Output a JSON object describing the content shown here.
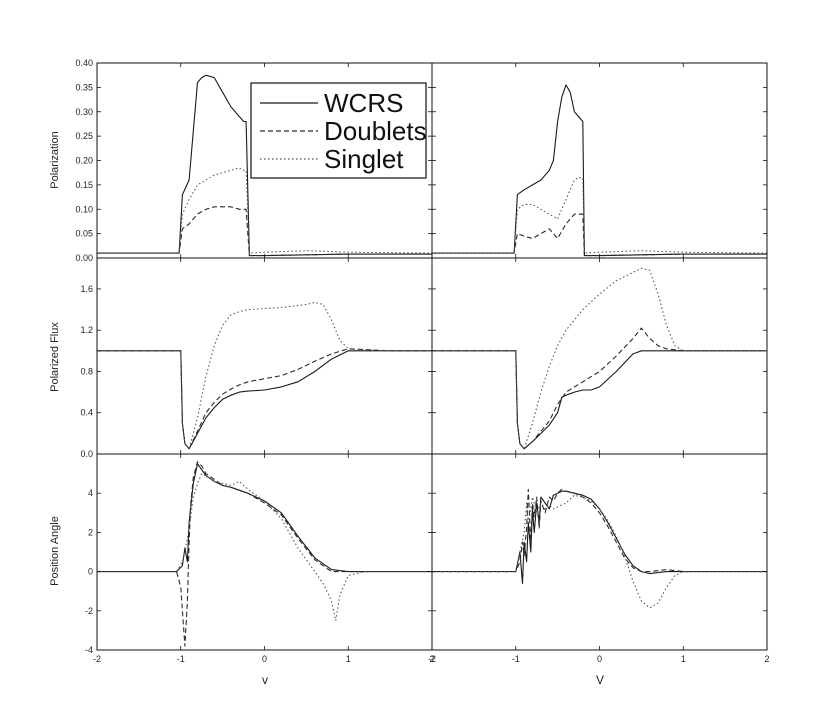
{
  "chart_data": {
    "type": "line",
    "layout": "3x2 panel grid with shared axes",
    "series_styles": [
      {
        "name": "WCRS",
        "dash": "solid",
        "color": "#1a1a1a"
      },
      {
        "name": "Doublets",
        "dash": "dashed",
        "color": "#2a2a2a"
      },
      {
        "name": "Singlet",
        "dash": "dotted",
        "color": "#555555"
      }
    ],
    "legend": {
      "placement": "top-left panel, upper right",
      "entries": [
        "WCRS",
        "Doublets",
        "Singlet"
      ]
    },
    "x_axis": {
      "xlim": [
        -2,
        2
      ],
      "ticks": [
        -2,
        -1,
        0,
        1,
        2
      ],
      "xlabel_left": "v",
      "xlabel_right": "V"
    },
    "rows": [
      {
        "ylabel": "Polarization",
        "ylim": [
          0.0,
          0.4
        ],
        "ticks": [
          "0.00",
          "0.05",
          "0.10",
          "0.15",
          "0.20",
          "0.25",
          "0.30",
          "0.35",
          "0.40"
        ],
        "tick_values": [
          0.0,
          0.05,
          0.1,
          0.15,
          0.2,
          0.25,
          0.3,
          0.35,
          0.4
        ]
      },
      {
        "ylabel": "Polarized Flux",
        "ylim": [
          0.0,
          1.9
        ],
        "ticks": [
          "0.0",
          "0.4",
          "0.8",
          "1.2",
          "1.6"
        ],
        "tick_values": [
          0.0,
          0.4,
          0.8,
          1.2,
          1.6
        ]
      },
      {
        "ylabel": "Position Angle",
        "ylim": [
          -4,
          6
        ],
        "ticks": [
          "-4",
          "-2",
          "0",
          "2",
          "4"
        ],
        "tick_values": [
          -4,
          -2,
          0,
          2,
          4
        ]
      }
    ],
    "panels": [
      {
        "row": 0,
        "col": 0,
        "series": [
          {
            "name": "WCRS",
            "x": [
              -2,
              -1.02,
              -0.98,
              -0.9,
              -0.85,
              -0.8,
              -0.75,
              -0.7,
              -0.6,
              -0.5,
              -0.4,
              -0.3,
              -0.25,
              -0.22,
              -0.18,
              0,
              1,
              2
            ],
            "y": [
              0.01,
              0.01,
              0.13,
              0.16,
              0.26,
              0.36,
              0.37,
              0.375,
              0.37,
              0.34,
              0.31,
              0.29,
              0.28,
              0.28,
              0.005,
              0.005,
              0.008,
              0.008
            ]
          },
          {
            "name": "Doublets",
            "x": [
              -2,
              -1.02,
              -0.98,
              -0.9,
              -0.8,
              -0.7,
              -0.6,
              -0.5,
              -0.4,
              -0.3,
              -0.25,
              -0.22,
              -0.18,
              0,
              1,
              2
            ],
            "y": [
              0.01,
              0.01,
              0.06,
              0.07,
              0.09,
              0.1,
              0.105,
              0.105,
              0.105,
              0.1,
              0.1,
              0.1,
              0.005,
              0.005,
              0.008,
              0.008
            ]
          },
          {
            "name": "Singlet",
            "x": [
              -2,
              -1.02,
              -0.98,
              -0.9,
              -0.8,
              -0.7,
              -0.6,
              -0.5,
              -0.4,
              -0.3,
              -0.25,
              -0.22,
              -0.18,
              0,
              0.5,
              1,
              2
            ],
            "y": [
              0.01,
              0.01,
              0.09,
              0.12,
              0.15,
              0.16,
              0.17,
              0.175,
              0.18,
              0.185,
              0.18,
              0.18,
              0.01,
              0.012,
              0.015,
              0.012,
              0.01
            ]
          }
        ]
      },
      {
        "row": 0,
        "col": 1,
        "series": [
          {
            "name": "WCRS",
            "x": [
              -2,
              -1.02,
              -0.98,
              -0.9,
              -0.8,
              -0.7,
              -0.6,
              -0.55,
              -0.5,
              -0.45,
              -0.4,
              -0.35,
              -0.3,
              -0.25,
              -0.2,
              -0.18,
              0,
              1,
              2
            ],
            "y": [
              0.01,
              0.01,
              0.13,
              0.14,
              0.15,
              0.16,
              0.18,
              0.2,
              0.28,
              0.33,
              0.355,
              0.34,
              0.3,
              0.29,
              0.28,
              0.005,
              0.005,
              0.008,
              0.008
            ]
          },
          {
            "name": "Doublets",
            "x": [
              -2,
              -1.02,
              -0.98,
              -0.9,
              -0.8,
              -0.7,
              -0.6,
              -0.5,
              -0.4,
              -0.3,
              -0.25,
              -0.2,
              -0.18,
              0,
              1,
              2
            ],
            "y": [
              0.01,
              0.01,
              0.05,
              0.045,
              0.04,
              0.05,
              0.06,
              0.04,
              0.07,
              0.09,
              0.09,
              0.09,
              0.005,
              0.005,
              0.008,
              0.008
            ]
          },
          {
            "name": "Singlet",
            "x": [
              -2,
              -1.02,
              -0.98,
              -0.9,
              -0.8,
              -0.7,
              -0.6,
              -0.5,
              -0.4,
              -0.3,
              -0.25,
              -0.2,
              -0.18,
              0,
              0.5,
              1,
              2
            ],
            "y": [
              0.01,
              0.01,
              0.1,
              0.11,
              0.11,
              0.1,
              0.09,
              0.08,
              0.12,
              0.16,
              0.165,
              0.165,
              0.01,
              0.012,
              0.015,
              0.012,
              0.01
            ]
          }
        ]
      },
      {
        "row": 1,
        "col": 0,
        "series": [
          {
            "name": "WCRS",
            "x": [
              -2,
              -1.0,
              -0.98,
              -0.95,
              -0.9,
              -0.8,
              -0.7,
              -0.6,
              -0.5,
              -0.4,
              -0.3,
              -0.2,
              0,
              0.2,
              0.4,
              0.6,
              0.8,
              1.0,
              1.5,
              2
            ],
            "y": [
              1.0,
              1.0,
              0.3,
              0.1,
              0.05,
              0.2,
              0.35,
              0.45,
              0.53,
              0.57,
              0.6,
              0.61,
              0.62,
              0.65,
              0.7,
              0.8,
              0.92,
              1.0,
              1.0,
              1.0
            ]
          },
          {
            "name": "Doublets",
            "x": [
              -2,
              -1.0,
              -0.98,
              -0.95,
              -0.9,
              -0.8,
              -0.7,
              -0.6,
              -0.5,
              -0.4,
              -0.3,
              -0.2,
              0,
              0.2,
              0.4,
              0.6,
              0.8,
              1.0,
              1.5,
              2
            ],
            "y": [
              1.0,
              1.0,
              0.3,
              0.1,
              0.05,
              0.22,
              0.4,
              0.5,
              0.58,
              0.63,
              0.67,
              0.7,
              0.73,
              0.76,
              0.82,
              0.9,
              0.97,
              1.02,
              1.0,
              1.0
            ]
          },
          {
            "name": "Singlet",
            "x": [
              -2,
              -1.0,
              -0.98,
              -0.95,
              -0.9,
              -0.8,
              -0.7,
              -0.6,
              -0.5,
              -0.4,
              -0.3,
              -0.2,
              0,
              0.2,
              0.4,
              0.5,
              0.6,
              0.7,
              0.8,
              0.9,
              1.0,
              1.5,
              2
            ],
            "y": [
              1.0,
              1.0,
              0.3,
              0.1,
              0.05,
              0.35,
              0.75,
              1.05,
              1.25,
              1.35,
              1.38,
              1.4,
              1.41,
              1.42,
              1.44,
              1.45,
              1.47,
              1.45,
              1.3,
              1.1,
              1.02,
              1.0,
              1.0
            ]
          }
        ]
      },
      {
        "row": 1,
        "col": 1,
        "series": [
          {
            "name": "WCRS",
            "x": [
              -2,
              -1.0,
              -0.98,
              -0.95,
              -0.9,
              -0.8,
              -0.7,
              -0.6,
              -0.5,
              -0.45,
              -0.4,
              -0.3,
              -0.2,
              -0.1,
              0,
              0.2,
              0.4,
              0.5,
              1.0,
              2
            ],
            "y": [
              1.0,
              1.0,
              0.3,
              0.1,
              0.05,
              0.12,
              0.2,
              0.28,
              0.4,
              0.55,
              0.57,
              0.6,
              0.62,
              0.62,
              0.65,
              0.8,
              0.97,
              1.0,
              1.0,
              1.0
            ]
          },
          {
            "name": "Doublets",
            "x": [
              -2,
              -1.0,
              -0.98,
              -0.95,
              -0.9,
              -0.8,
              -0.7,
              -0.6,
              -0.5,
              -0.4,
              -0.3,
              -0.2,
              0,
              0.2,
              0.4,
              0.5,
              0.6,
              0.7,
              0.8,
              1.0,
              2
            ],
            "y": [
              1.0,
              1.0,
              0.3,
              0.1,
              0.05,
              0.12,
              0.22,
              0.32,
              0.48,
              0.6,
              0.65,
              0.7,
              0.8,
              0.95,
              1.12,
              1.22,
              1.12,
              1.05,
              1.02,
              1.0,
              1.0
            ]
          },
          {
            "name": "Singlet",
            "x": [
              -2,
              -1.0,
              -0.98,
              -0.95,
              -0.9,
              -0.8,
              -0.7,
              -0.6,
              -0.5,
              -0.4,
              -0.3,
              -0.2,
              0,
              0.2,
              0.4,
              0.5,
              0.6,
              0.7,
              0.8,
              0.9,
              1.0,
              2
            ],
            "y": [
              1.0,
              1.0,
              0.3,
              0.1,
              0.05,
              0.3,
              0.6,
              0.85,
              1.05,
              1.2,
              1.3,
              1.4,
              1.55,
              1.68,
              1.76,
              1.8,
              1.78,
              1.55,
              1.25,
              1.05,
              1.0,
              1.0
            ]
          }
        ]
      },
      {
        "row": 2,
        "col": 0,
        "series": [
          {
            "name": "WCRS",
            "x": [
              -2,
              -1.05,
              -0.98,
              -0.95,
              -0.92,
              -0.9,
              -0.85,
              -0.8,
              -0.75,
              -0.7,
              -0.6,
              -0.5,
              -0.4,
              -0.2,
              0,
              0.2,
              0.4,
              0.6,
              0.8,
              1.0,
              1.5,
              2
            ],
            "y": [
              0,
              0,
              0.3,
              1.2,
              0.5,
              2.5,
              4.5,
              5.5,
              5.2,
              4.9,
              4.6,
              4.4,
              4.3,
              4.0,
              3.6,
              3.0,
              1.8,
              0.7,
              0.1,
              0,
              0,
              0
            ]
          },
          {
            "name": "Doublets",
            "x": [
              -2,
              -1.05,
              -1.0,
              -0.98,
              -0.95,
              -0.92,
              -0.9,
              -0.88,
              -0.85,
              -0.8,
              -0.75,
              -0.7,
              -0.6,
              -0.5,
              -0.4,
              -0.2,
              0,
              0.2,
              0.4,
              0.6,
              0.8,
              1.0,
              1.5,
              2
            ],
            "y": [
              0,
              0,
              -0.8,
              -2.0,
              -3.8,
              -1.5,
              1.5,
              3.5,
              4.8,
              5.6,
              5.4,
              5.0,
              4.7,
              4.4,
              4.3,
              4.0,
              3.5,
              2.9,
              1.7,
              0.6,
              0.0,
              0,
              0,
              0
            ]
          },
          {
            "name": "Singlet",
            "x": [
              -2,
              -1.05,
              -0.98,
              -0.95,
              -0.9,
              -0.85,
              -0.8,
              -0.75,
              -0.7,
              -0.6,
              -0.5,
              -0.4,
              -0.3,
              -0.2,
              0,
              0.2,
              0.4,
              0.6,
              0.7,
              0.8,
              0.85,
              0.9,
              1.0,
              1.2,
              1.5,
              2
            ],
            "y": [
              0,
              0,
              0.5,
              1.0,
              2.2,
              3.8,
              4.5,
              5.0,
              4.9,
              4.6,
              4.5,
              4.4,
              4.6,
              4.2,
              3.6,
              2.7,
              1.2,
              0.0,
              -0.6,
              -1.5,
              -2.5,
              -1.2,
              -0.2,
              0,
              0,
              0
            ]
          }
        ]
      },
      {
        "row": 2,
        "col": 1,
        "series": [
          {
            "name": "WCRS",
            "x": [
              -2,
              -1.0,
              -0.95,
              -0.92,
              -0.9,
              -0.87,
              -0.85,
              -0.82,
              -0.8,
              -0.78,
              -0.75,
              -0.72,
              -0.7,
              -0.65,
              -0.6,
              -0.55,
              -0.5,
              -0.45,
              -0.4,
              -0.3,
              -0.2,
              -0.1,
              0,
              0.1,
              0.2,
              0.3,
              0.4,
              0.5,
              0.6,
              0.8,
              1.0,
              2
            ],
            "y": [
              0,
              0,
              1.0,
              -0.6,
              1.5,
              0.5,
              2.5,
              1.0,
              3.2,
              2.0,
              3.5,
              2.5,
              3.8,
              3.5,
              3.2,
              3.9,
              4.0,
              4.1,
              4.1,
              4.0,
              3.9,
              3.7,
              3.2,
              2.5,
              1.7,
              0.9,
              0.3,
              0.0,
              -0.1,
              0.0,
              0,
              0
            ]
          },
          {
            "name": "Doublets",
            "x": [
              -2,
              -1.0,
              -0.95,
              -0.92,
              -0.9,
              -0.87,
              -0.85,
              -0.82,
              -0.8,
              -0.78,
              -0.75,
              -0.72,
              -0.7,
              -0.65,
              -0.6,
              -0.55,
              -0.5,
              -0.45,
              -0.4,
              -0.3,
              -0.2,
              -0.1,
              0,
              0.1,
              0.2,
              0.3,
              0.4,
              0.5,
              0.6,
              0.8,
              1.0,
              2
            ],
            "y": [
              0,
              0,
              0.5,
              1.5,
              0.8,
              2.2,
              4.2,
              1.5,
              3.5,
              2.8,
              3.8,
              2.2,
              3.6,
              3.0,
              3.8,
              3.6,
              4.0,
              4.2,
              4.1,
              4.0,
              3.8,
              3.5,
              3.0,
              2.3,
              1.5,
              0.7,
              0.2,
              0.0,
              0.0,
              0.1,
              0,
              0
            ]
          },
          {
            "name": "Singlet",
            "x": [
              -2,
              -1.0,
              -0.95,
              -0.9,
              -0.87,
              -0.85,
              -0.82,
              -0.8,
              -0.75,
              -0.7,
              -0.65,
              -0.6,
              -0.55,
              -0.5,
              -0.4,
              -0.3,
              -0.2,
              -0.1,
              0,
              0.1,
              0.2,
              0.3,
              0.4,
              0.5,
              0.6,
              0.7,
              0.8,
              0.9,
              1.0,
              2
            ],
            "y": [
              0,
              0,
              1.0,
              2.0,
              3.5,
              2.5,
              3.2,
              3.8,
              3.0,
              3.5,
              3.2,
              3.4,
              3.2,
              3.3,
              3.5,
              3.9,
              3.8,
              3.6,
              3.2,
              2.6,
              1.8,
              0.8,
              -0.5,
              -1.5,
              -1.85,
              -1.6,
              -0.8,
              -0.2,
              0,
              0
            ]
          }
        ]
      }
    ]
  }
}
